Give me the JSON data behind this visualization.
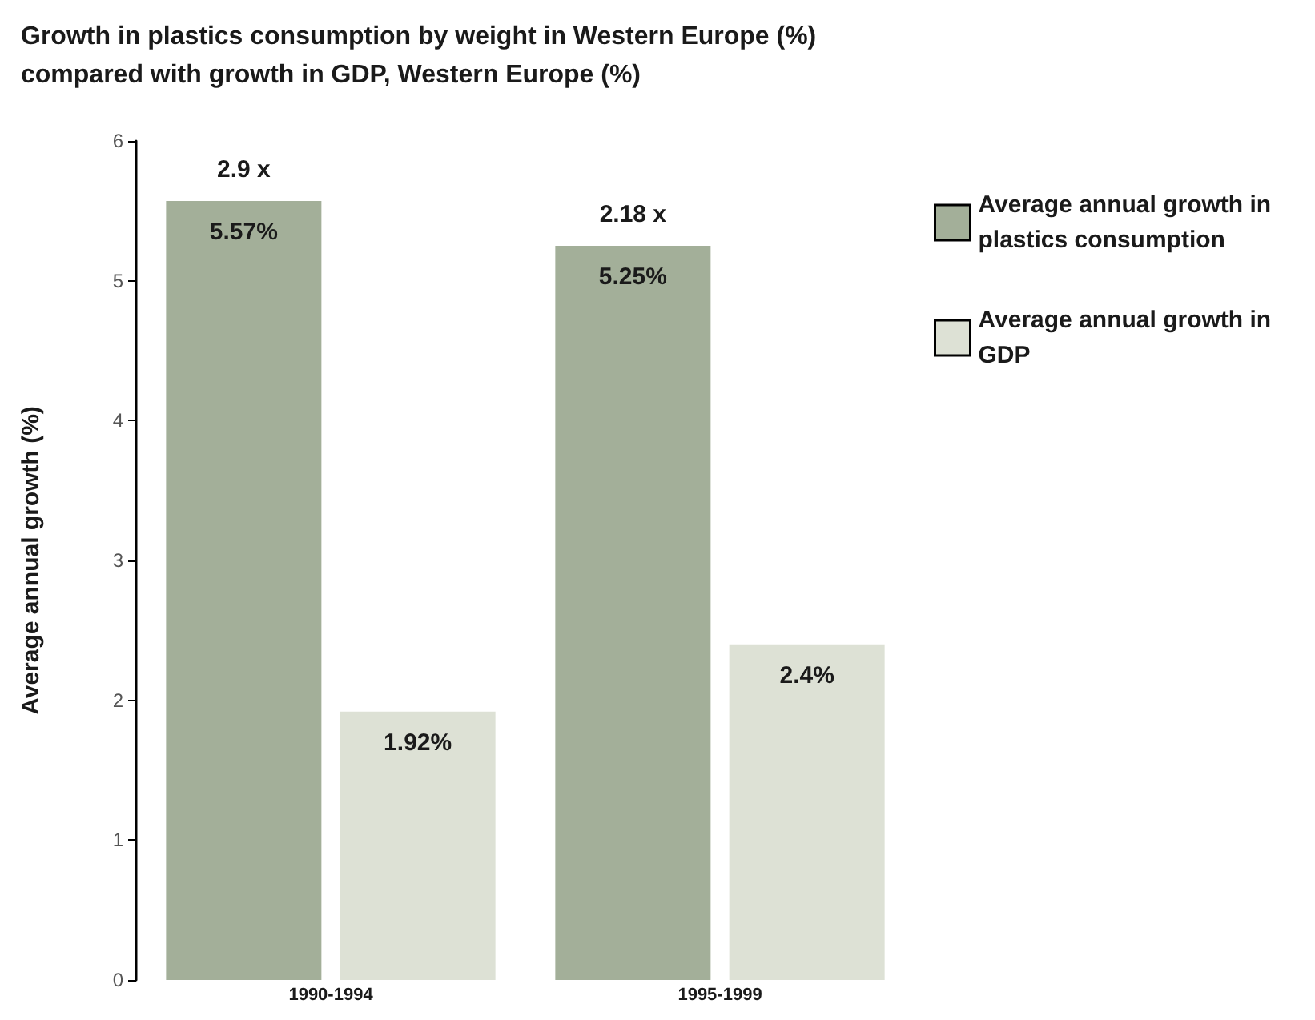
{
  "chart_data": {
    "type": "bar",
    "title": "Growth in plastics consumption by weight in Western Europe (%)\ncompared with growth in GDP, Western Europe (%)",
    "ylabel": "Average annual growth (%)",
    "categories": [
      "1990-1994",
      "1995-1999"
    ],
    "series": [
      {
        "name": "Average annual growth in plastics consumption",
        "color": "#a3af99",
        "values": [
          5.57,
          5.25
        ],
        "value_labels": [
          "5.57%",
          "5.25%"
        ]
      },
      {
        "name": "Average annual growth in GDP",
        "color": "#dde1d5",
        "values": [
          1.92,
          2.4
        ],
        "value_labels": [
          "1.92%",
          "2.4%"
        ]
      }
    ],
    "annotations": [
      "2.9 x",
      "2.18 x"
    ],
    "ylim": [
      0,
      6
    ],
    "yticks": [
      0,
      1,
      2,
      3,
      4,
      5,
      6
    ],
    "grid": false,
    "legend": "top right"
  }
}
